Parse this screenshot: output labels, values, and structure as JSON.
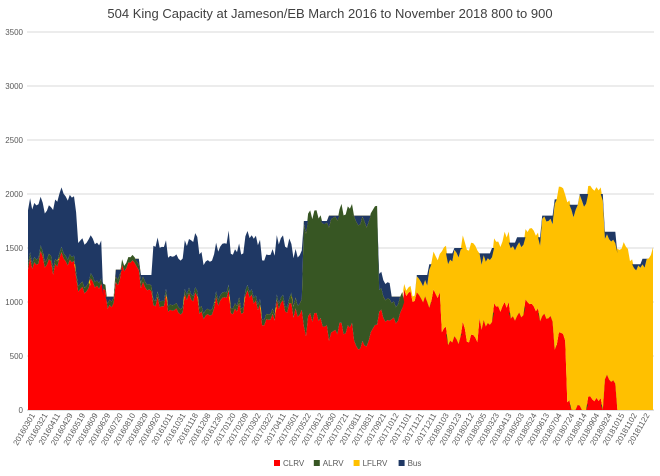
{
  "chart_data": {
    "type": "area",
    "stacked": true,
    "title": "504 King Capacity at Jameson/EB March 2016 to November 2018  800 to 900",
    "xlabel": "",
    "ylabel": "",
    "ylim": [
      0,
      3500
    ],
    "yticks": [
      0,
      500,
      1000,
      1500,
      2000,
      2500,
      3000,
      3500
    ],
    "grid": true,
    "legend_position": "bottom",
    "x_tick_labels": [
      "20160301",
      "20160321",
      "20160411",
      "20160429",
      "20160519",
      "20160609",
      "20160629",
      "20160720",
      "20160810",
      "20160829",
      "20160920",
      "20161011",
      "20161031",
      "20161118",
      "20161208",
      "20161230",
      "20170120",
      "20170209",
      "20170302",
      "20170322",
      "20170411",
      "20170501",
      "20170522",
      "20170612",
      "20170630",
      "20170721",
      "20170811",
      "20170831",
      "20170921",
      "20171012",
      "20171101",
      "20171121",
      "20171211",
      "20180103",
      "20180123",
      "20180212",
      "20180305",
      "20180323",
      "20180413",
      "20180503",
      "20180524",
      "20180613",
      "20180704",
      "20180724",
      "20180814",
      "20180904",
      "20180924",
      "20181015",
      "20181102",
      "20181122"
    ],
    "series": [
      {
        "name": "CLRV",
        "color": "#ff0000",
        "values": [
          1300,
          1400,
          1350,
          1300,
          1200,
          1100,
          1000,
          1250,
          1350,
          1200,
          950,
          1000,
          1000,
          1000,
          950,
          950,
          1000,
          1000,
          900,
          900,
          900,
          950,
          800,
          800,
          750,
          700,
          650,
          700,
          850,
          900,
          1000,
          1100,
          1000,
          700,
          700,
          600,
          850,
          900,
          900,
          950,
          900,
          900,
          600,
          50,
          50,
          50,
          350,
          0,
          0,
          0
        ]
      },
      {
        "name": "ALRV",
        "color": "#375623",
        "values": [
          50,
          50,
          50,
          50,
          50,
          50,
          50,
          50,
          50,
          50,
          50,
          50,
          50,
          50,
          50,
          50,
          50,
          50,
          50,
          50,
          50,
          100,
          950,
          950,
          1050,
          1100,
          1150,
          1100,
          200,
          150,
          0,
          0,
          0,
          0,
          0,
          0,
          0,
          0,
          0,
          0,
          0,
          0,
          0,
          0,
          0,
          0,
          0,
          0,
          0,
          0
        ]
      },
      {
        "name": "LFLRV",
        "color": "#ffc000",
        "values": [
          0,
          0,
          0,
          0,
          0,
          0,
          0,
          0,
          0,
          0,
          0,
          0,
          0,
          0,
          0,
          0,
          0,
          0,
          0,
          0,
          0,
          0,
          0,
          0,
          0,
          0,
          0,
          0,
          0,
          0,
          50,
          150,
          350,
          750,
          800,
          850,
          600,
          600,
          650,
          650,
          700,
          900,
          1350,
          1850,
          1950,
          1950,
          1300,
          1450,
          1350,
          1400
        ]
      },
      {
        "name": "Bus",
        "color": "#1f3864",
        "values": [
          500,
          450,
          550,
          550,
          400,
          350,
          0,
          0,
          0,
          0,
          500,
          450,
          450,
          500,
          450,
          450,
          500,
          500,
          550,
          550,
          550,
          450,
          0,
          0,
          0,
          0,
          0,
          0,
          150,
          0,
          0,
          0,
          0,
          0,
          0,
          0,
          0,
          0,
          0,
          0,
          0,
          0,
          0,
          0,
          0,
          0,
          0,
          0,
          0,
          0
        ]
      }
    ]
  }
}
